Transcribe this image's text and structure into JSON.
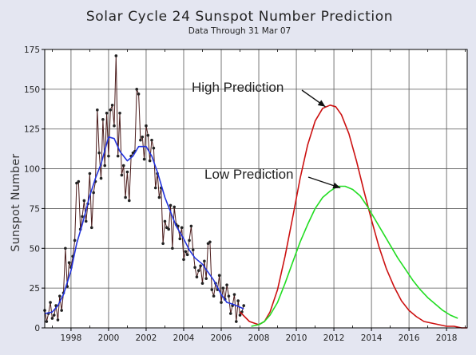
{
  "chart_data": {
    "type": "line",
    "title": "Solar Cycle 24 Sunspot Number Prediction",
    "subtitle": "Data Through 31 Mar 07",
    "xlabel": "",
    "ylabel": "Sunspot Number",
    "xlim": [
      1996.6,
      2019.1
    ],
    "ylim": [
      0,
      175
    ],
    "x_ticks": [
      1998,
      2000,
      2002,
      2004,
      2006,
      2008,
      2010,
      2012,
      2014,
      2016,
      2018
    ],
    "x_tick_labels": [
      "1998",
      "2000",
      "2002",
      "2004",
      "2006",
      "2008",
      "2010",
      "2012",
      "2014",
      "2016",
      "2018"
    ],
    "y_ticks": [
      0,
      25,
      50,
      75,
      100,
      125,
      150,
      175
    ],
    "y_tick_labels": [
      "0",
      "25",
      "50",
      "75",
      "100",
      "125",
      "150",
      "175"
    ],
    "grid": true,
    "legend": "none",
    "series": [
      {
        "color": "#4a1a1a",
        "markers": true,
        "x": [
          1996.6,
          1996.7,
          1996.8,
          1996.9,
          1997.0,
          1997.1,
          1997.2,
          1997.3,
          1997.4,
          1997.5,
          1997.6,
          1997.7,
          1997.8,
          1997.9,
          1998.0,
          1998.1,
          1998.2,
          1998.3,
          1998.4,
          1998.5,
          1998.6,
          1998.7,
          1998.8,
          1998.9,
          1999.0,
          1999.1,
          1999.2,
          1999.3,
          1999.4,
          1999.5,
          1999.6,
          1999.7,
          1999.8,
          1999.9,
          2000.0,
          2000.1,
          2000.2,
          2000.3,
          2000.4,
          2000.5,
          2000.6,
          2000.7,
          2000.8,
          2000.9,
          2001.0,
          2001.1,
          2001.2,
          2001.3,
          2001.4,
          2001.5,
          2001.6,
          2001.7,
          2001.8,
          2001.9,
          2002.0,
          2002.1,
          2002.2,
          2002.3,
          2002.4,
          2002.5,
          2002.6,
          2002.7,
          2002.8,
          2002.9,
          2003.0,
          2003.1,
          2003.2,
          2003.3,
          2003.4,
          2003.5,
          2003.6,
          2003.7,
          2003.8,
          2003.9,
          2004.0,
          2004.1,
          2004.2,
          2004.3,
          2004.4,
          2004.5,
          2004.6,
          2004.7,
          2004.8,
          2004.9,
          2005.0,
          2005.1,
          2005.2,
          2005.3,
          2005.4,
          2005.5,
          2005.6,
          2005.7,
          2005.8,
          2005.9,
          2006.0,
          2006.1,
          2006.2,
          2006.3,
          2006.4,
          2006.5,
          2006.6,
          2006.7,
          2006.8,
          2006.9,
          2007.0,
          2007.1,
          2007.2
        ],
        "values": [
          11,
          4,
          9,
          16,
          6,
          8,
          14,
          5,
          20,
          11,
          22,
          50,
          26,
          41,
          38,
          45,
          55,
          91,
          92,
          62,
          70,
          80,
          67,
          78,
          97,
          63,
          85,
          92,
          137,
          110,
          94,
          131,
          102,
          135,
          108,
          137,
          140,
          127,
          171,
          108,
          135,
          96,
          102,
          82,
          98,
          80,
          108,
          110,
          111,
          150,
          147,
          118,
          120,
          106,
          127,
          121,
          105,
          118,
          113,
          88,
          97,
          82,
          88,
          53,
          67,
          63,
          62,
          77,
          50,
          76,
          65,
          64,
          56,
          63,
          43,
          48,
          46,
          55,
          64,
          49,
          38,
          32,
          36,
          39,
          28,
          42,
          31,
          53,
          54,
          24,
          20,
          28,
          24,
          33,
          16,
          25,
          18,
          27,
          20,
          9,
          14,
          21,
          4,
          17,
          8,
          10,
          14
        ]
      },
      {
        "color": "#2233dd",
        "markers": false,
        "x": [
          1996.6,
          1997.0,
          1997.3,
          1997.6,
          1998.0,
          1998.3,
          1998.6,
          1999.0,
          1999.3,
          1999.6,
          2000.0,
          2000.3,
          2000.6,
          2001.0,
          2001.3,
          2001.6,
          2002.0,
          2002.3,
          2002.6,
          2003.0,
          2003.3,
          2003.6,
          2004.0,
          2004.3,
          2004.6,
          2005.0,
          2005.3,
          2005.6,
          2006.0,
          2006.3,
          2006.6,
          2007.0,
          2007.2
        ],
        "values": [
          9,
          10,
          14,
          21,
          36,
          53,
          65,
          83,
          94,
          103,
          120,
          119,
          111,
          105,
          108,
          114,
          114,
          108,
          98,
          82,
          73,
          64,
          56,
          49,
          44,
          40,
          35,
          30,
          21,
          16,
          15,
          13,
          12
        ]
      },
      {
        "name": "High Prediction",
        "color": "#cc1111",
        "markers": false,
        "x": [
          2007.0,
          2007.5,
          2008.0,
          2008.3,
          2008.6,
          2009.0,
          2009.4,
          2009.8,
          2010.2,
          2010.6,
          2011.0,
          2011.4,
          2011.8,
          2012.1,
          2012.4,
          2012.8,
          2013.2,
          2013.6,
          2014.0,
          2014.4,
          2014.8,
          2015.2,
          2015.6,
          2016.0,
          2016.4,
          2016.8,
          2017.2,
          2017.6,
          2018.0,
          2018.4,
          2018.8,
          2019.1
        ],
        "values": [
          10,
          4,
          2,
          4,
          10,
          24,
          45,
          69,
          94,
          115,
          130,
          138,
          140,
          139,
          134,
          122,
          105,
          86,
          68,
          51,
          37,
          26,
          17,
          11,
          7,
          4,
          3,
          2,
          1,
          1,
          0,
          0
        ]
      },
      {
        "name": "Low Prediction",
        "color": "#22dd22",
        "markers": false,
        "x": [
          2007.6,
          2008.0,
          2008.3,
          2008.6,
          2009.0,
          2009.4,
          2009.8,
          2010.2,
          2010.6,
          2011.0,
          2011.4,
          2011.8,
          2012.2,
          2012.6,
          2013.0,
          2013.4,
          2013.8,
          2014.2,
          2014.6,
          2015.0,
          2015.4,
          2015.8,
          2016.2,
          2016.6,
          2017.0,
          2017.4,
          2017.8,
          2018.2,
          2018.6
        ],
        "values": [
          1,
          2,
          4,
          8,
          16,
          28,
          41,
          54,
          65,
          75,
          82,
          86,
          89,
          89,
          87,
          83,
          76,
          68,
          60,
          52,
          44,
          37,
          30,
          24,
          19,
          15,
          11,
          8,
          6
        ]
      }
    ],
    "annotations": [
      {
        "text": "High Prediction",
        "arrow_to": [
          2011.8,
          140
        ]
      },
      {
        "text": "Low Prediction",
        "arrow_to": [
          2012.6,
          89
        ]
      }
    ]
  }
}
